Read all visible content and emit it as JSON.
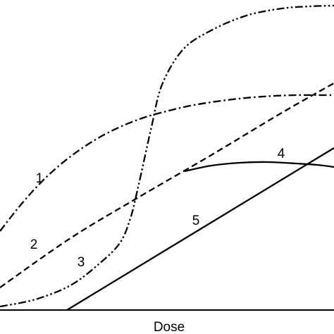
{
  "chart_data": {
    "type": "line",
    "xlabel": "Dose",
    "ylabel": "",
    "title": "",
    "xlim": [
      0,
      474
    ],
    "ylim": [
      0,
      440
    ],
    "grid": false,
    "legend": "none",
    "series": [
      {
        "name": "1",
        "style": "dash-dot",
        "x": [
          0,
          30,
          60,
          90,
          120,
          150,
          180,
          210,
          240,
          270,
          300,
          330,
          360,
          390,
          420,
          450,
          474
        ],
        "y": [
          112,
          150,
          183,
          210,
          232,
          250,
          264,
          275,
          283,
          290,
          295,
          299,
          302,
          304,
          305,
          305,
          305
        ]
      },
      {
        "name": "2",
        "style": "dashed",
        "x": [
          0,
          100,
          200,
          300,
          400,
          474
        ],
        "y": [
          32,
          102,
          162,
          220,
          280,
          322
        ]
      },
      {
        "name": "3",
        "style": "dash-dot-dot",
        "x": [
          0,
          50,
          100,
          140,
          170,
          185,
          195,
          205,
          215,
          230,
          260,
          300,
          350,
          400,
          440,
          474
        ],
        "y": [
          5,
          15,
          35,
          65,
          95,
          130,
          170,
          215,
          260,
          320,
          370,
          397,
          418,
          428,
          431,
          432
        ]
      },
      {
        "name": "4",
        "style": "solid",
        "x": [
          262,
          300,
          340,
          380,
          420,
          450,
          474
        ],
        "y": [
          197,
          205,
          209,
          210,
          208,
          206,
          203
        ]
      },
      {
        "name": "5",
        "style": "solid",
        "x": [
          95,
          474
        ],
        "y": [
          0,
          230
        ]
      }
    ],
    "annotations": [
      {
        "text": "1",
        "x": 56,
        "y": 188
      },
      {
        "text": "2",
        "x": 48,
        "y": 94
      },
      {
        "text": "3",
        "x": 115,
        "y": 69
      },
      {
        "text": "4",
        "x": 399,
        "y": 223
      },
      {
        "text": "5",
        "x": 278,
        "y": 128
      }
    ]
  }
}
